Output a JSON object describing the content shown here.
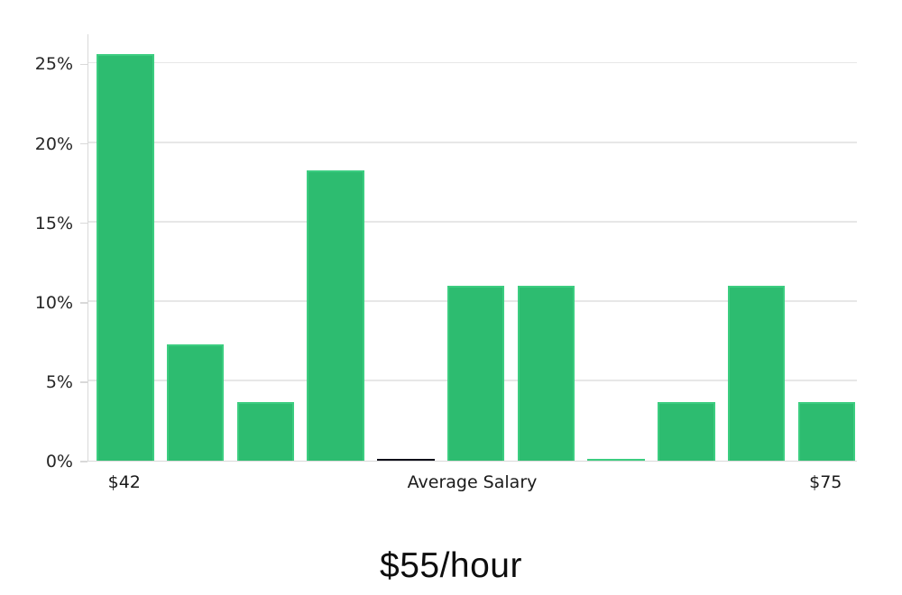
{
  "title": "$55/hour",
  "chart_data": {
    "type": "bar",
    "subtype": "histogram",
    "title": "$55/hour",
    "xlabel": "Average Salary",
    "ylabel": "",
    "ylim": [
      0,
      26.9
    ],
    "grid": "horizontal",
    "legend": "none",
    "y_ticks": [
      {
        "value": 0,
        "label": "0%"
      },
      {
        "value": 5,
        "label": "5%"
      },
      {
        "value": 10,
        "label": "10%"
      },
      {
        "value": 15,
        "label": "15%"
      },
      {
        "value": 20,
        "label": "20%"
      },
      {
        "value": 25,
        "label": "25%"
      }
    ],
    "x_ticks": [
      {
        "bar_index": 0,
        "label": "$42"
      },
      {
        "bar_index": 10,
        "label": "$75"
      }
    ],
    "bars": [
      {
        "value": 25.6,
        "color": "green"
      },
      {
        "value": 7.3,
        "color": "green"
      },
      {
        "value": 3.7,
        "color": "green"
      },
      {
        "value": 18.3,
        "color": "green"
      },
      {
        "value": 0.1,
        "color": "black"
      },
      {
        "value": 11.0,
        "color": "green"
      },
      {
        "value": 11.0,
        "color": "green"
      },
      {
        "value": 0.1,
        "color": "green"
      },
      {
        "value": 3.7,
        "color": "green"
      },
      {
        "value": 11.0,
        "color": "green"
      },
      {
        "value": 3.7,
        "color": "green"
      }
    ],
    "colors": {
      "bar_green": "#2dbc70",
      "bar_green_edge": "#3ccd80",
      "bar_black": "#10101a",
      "gridline": "#e7e7e7",
      "axis_spine": "#d9d9d9",
      "tick_text": "#262626",
      "title_text": "#0e0e0e"
    }
  }
}
